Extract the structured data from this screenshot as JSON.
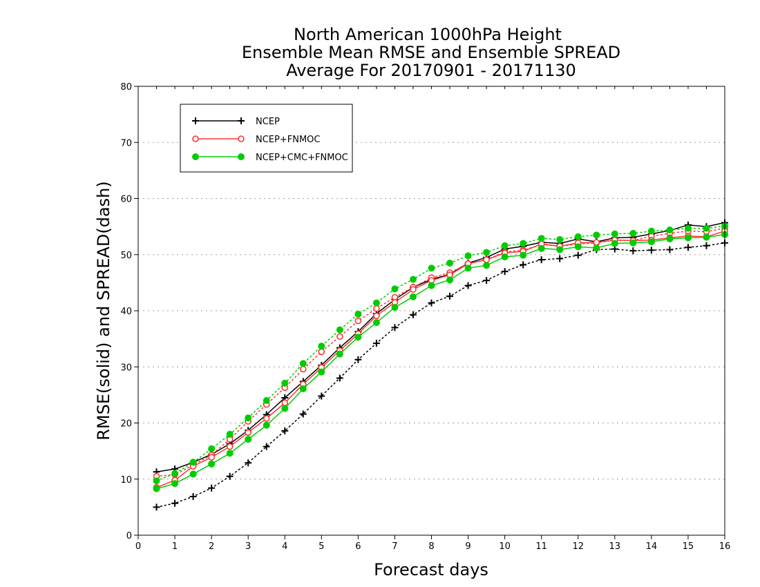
{
  "chart_data": {
    "type": "line",
    "title": [
      "North American 1000hPa Height",
      "Ensemble Mean RMSE and Ensemble SPREAD",
      "Average For 20170901 - 20171130"
    ],
    "xlabel": "Forecast days",
    "ylabel": "RMSE(solid) and SPREAD(dash)",
    "xlim": [
      0,
      16
    ],
    "ylim": [
      0,
      80
    ],
    "xticks": [
      "0",
      "1",
      "2",
      "3",
      "4",
      "5",
      "6",
      "7",
      "8",
      "9",
      "10",
      "11",
      "12",
      "13",
      "14",
      "15",
      "16"
    ],
    "yticks": [
      "0",
      "10",
      "20",
      "30",
      "40",
      "50",
      "60",
      "70",
      "80"
    ],
    "grid": true,
    "legend": "top-left",
    "x": [
      0.5,
      1,
      1.5,
      2,
      2.5,
      3,
      3.5,
      4,
      4.5,
      5,
      5.5,
      6,
      6.5,
      7,
      7.5,
      8,
      8.5,
      9,
      9.5,
      10,
      10.5,
      11,
      11.5,
      12,
      12.5,
      13,
      13.5,
      14,
      14.5,
      15,
      15.5,
      16
    ],
    "series": [
      {
        "name": "NCEP",
        "color": "#000000",
        "marker": "plus",
        "rmse": [
          11.3,
          11.8,
          13.0,
          14.4,
          16.3,
          18.7,
          21.5,
          24.5,
          27.4,
          30.3,
          33.4,
          36.3,
          39.5,
          42.0,
          44.2,
          45.6,
          46.5,
          48.5,
          49.5,
          51.0,
          51.5,
          52.2,
          52.0,
          52.8,
          52.3,
          53.0,
          53.1,
          53.7,
          54.3,
          55.3,
          55.0,
          55.7
        ],
        "spread": [
          5.0,
          5.7,
          6.9,
          8.4,
          10.5,
          12.9,
          15.8,
          18.6,
          21.6,
          24.8,
          28.0,
          31.3,
          34.2,
          37.0,
          39.3,
          41.4,
          42.6,
          44.5,
          45.4,
          47.0,
          48.2,
          49.1,
          49.3,
          49.9,
          50.9,
          51.0,
          50.7,
          50.8,
          50.9,
          51.3,
          51.6,
          52.1
        ]
      },
      {
        "name": "NCEP+FNMOC",
        "color": "#ff3333",
        "marker": "open-circle",
        "rmse": [
          8.5,
          9.8,
          12.3,
          13.9,
          15.8,
          18.3,
          20.8,
          23.6,
          26.9,
          29.9,
          32.9,
          35.9,
          39.1,
          41.5,
          43.8,
          45.4,
          46.4,
          48.4,
          49.1,
          50.3,
          50.6,
          51.9,
          51.5,
          52.1,
          52.2,
          52.6,
          52.5,
          52.6,
          53.0,
          53.3,
          53.2,
          54.2
        ],
        "spread": [
          10.5,
          10.8,
          12.5,
          14.3,
          17.1,
          20.3,
          23.3,
          26.3,
          29.6,
          32.7,
          35.4,
          38.2,
          40.4,
          42.4,
          44.2,
          45.9,
          46.8,
          48.4,
          49.1,
          50.5,
          50.8,
          51.8,
          51.5,
          51.9,
          52.1,
          52.6,
          52.5,
          53.3,
          53.8,
          54.2,
          54.1,
          54.7
        ]
      },
      {
        "name": "NCEP+CMC+FNMOC",
        "color": "#00cc00",
        "marker": "filled-circle",
        "rmse": [
          8.3,
          9.2,
          10.9,
          12.7,
          14.6,
          17.1,
          19.6,
          22.6,
          26.1,
          29.1,
          32.3,
          35.3,
          37.9,
          40.6,
          42.5,
          44.5,
          45.5,
          47.6,
          48.1,
          49.6,
          49.9,
          51.1,
          50.9,
          51.4,
          51.2,
          52.0,
          52.1,
          52.3,
          52.8,
          53.0,
          53.1,
          53.6
        ],
        "spread": [
          9.7,
          11.0,
          13.0,
          15.4,
          18.0,
          20.9,
          24.0,
          27.1,
          30.6,
          33.7,
          36.6,
          39.4,
          41.4,
          43.9,
          45.6,
          47.6,
          48.5,
          49.8,
          50.4,
          51.6,
          52.0,
          52.9,
          52.7,
          53.2,
          53.5,
          53.7,
          53.8,
          54.2,
          54.4,
          54.7,
          54.7,
          55.1
        ]
      }
    ]
  }
}
